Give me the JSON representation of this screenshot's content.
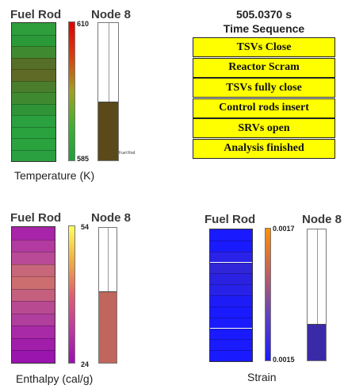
{
  "temperature_panel": {
    "rod_title": "Fuel Rod",
    "node_title": "Node 8",
    "caption": "Temperature (K)",
    "scale_max": "610",
    "scale_min": "585",
    "node_inner_label": "Fuel Rod",
    "node_fill_fraction": 0.43,
    "node_fill_color": "#5a4a1a",
    "rod_segment_colors": [
      "#2e9e3c",
      "#2a9a38",
      "#3f8a30",
      "#556f28",
      "#5f6a26",
      "#4a7e2c",
      "#3f8a30",
      "#2e9436",
      "#2aa03e",
      "#2aa23e",
      "#2aa23e",
      "#2aa040"
    ],
    "colorbar_stops": [
      "#e00000",
      "#d84010",
      "#a0a020",
      "#40b030",
      "#1ea03c"
    ]
  },
  "time_sequence": {
    "time": "505.0370 s",
    "heading": "Time Sequence",
    "events": [
      "TSVs Close",
      "Reactor Scram",
      "TSVs fully close",
      "Control rods insert",
      "SRVs open",
      "Analysis finished"
    ]
  },
  "enthalpy_panel": {
    "rod_title": "Fuel Rod",
    "node_title": "Node 8",
    "caption": "Enthalpy (cal/g)",
    "scale_max": "54",
    "scale_min": "24",
    "node_fill_fraction": 0.53,
    "node_fill_color": "#c0665c",
    "rod_segment_colors": [
      "#a824a8",
      "#b23aa0",
      "#b84a98",
      "#c8667a",
      "#cc6e70",
      "#c4607e",
      "#b84a92",
      "#b03e9c",
      "#a82aa6",
      "#a01eaa",
      "#9a14ae"
    ],
    "colorbar_stops": [
      "#ffff60",
      "#f0b040",
      "#e06070",
      "#c03aa0",
      "#9a10b0"
    ]
  },
  "strain_panel": {
    "rod_title": "Fuel Rod",
    "node_title": "Node 8",
    "caption": "Strain",
    "scale_max": "0.0017",
    "scale_min": "0.0015",
    "node_fill_fraction": 0.28,
    "node_fill_color": "#3a2aa8",
    "rod_segment_colors": [
      "#1a1aff",
      "#1a1aff",
      "#2a22e8",
      "#3026d8",
      "#2a22e0",
      "#2822e8",
      "#1e1cf6",
      "#1a1aff",
      "#1a1aff",
      "#1a1aff",
      "#1a1aff",
      "#1a1aff"
    ],
    "colorbar_stops": [
      "#ff9000",
      "#c06060",
      "#6040c0",
      "#1a1aff"
    ]
  }
}
